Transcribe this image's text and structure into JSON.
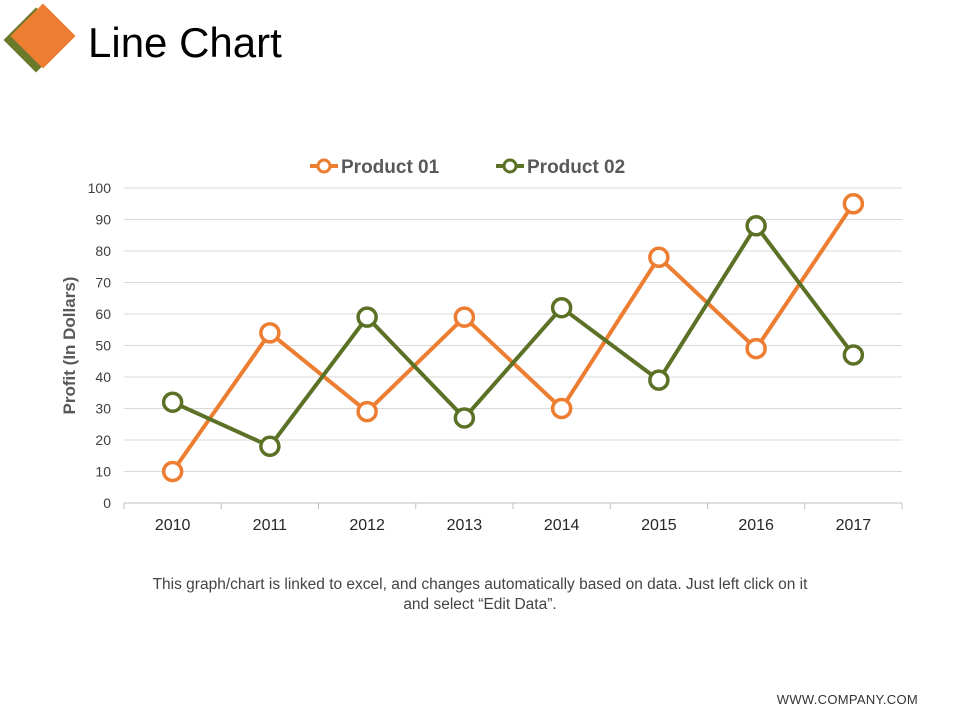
{
  "slide": {
    "title": "Line Chart",
    "caption": "This graph/chart is linked to excel, and changes automatically based on data. Just left click on it and select “Edit Data”.",
    "footer": "WWW.COMPANY.COM"
  },
  "colors": {
    "accent_orange": "#ED7D31",
    "accent_green": "#5B7125",
    "logo_green": "#6B7A2A"
  },
  "chart_data": {
    "type": "line",
    "title": "",
    "xlabel": "",
    "ylabel": "Profit (In Dollars)",
    "categories": [
      "2010",
      "2011",
      "2012",
      "2013",
      "2014",
      "2015",
      "2016",
      "2017"
    ],
    "ylim": [
      0,
      100
    ],
    "yticks": [
      0,
      10,
      20,
      30,
      40,
      50,
      60,
      70,
      80,
      90,
      100
    ],
    "grid": true,
    "legend_position": "top",
    "series": [
      {
        "name": "Product 01",
        "color": "#ED7D31",
        "values": [
          10,
          54,
          29,
          59,
          30,
          78,
          49,
          95
        ]
      },
      {
        "name": "Product 02",
        "color": "#5B7125",
        "values": [
          32,
          18,
          59,
          27,
          62,
          39,
          88,
          47
        ]
      }
    ]
  }
}
